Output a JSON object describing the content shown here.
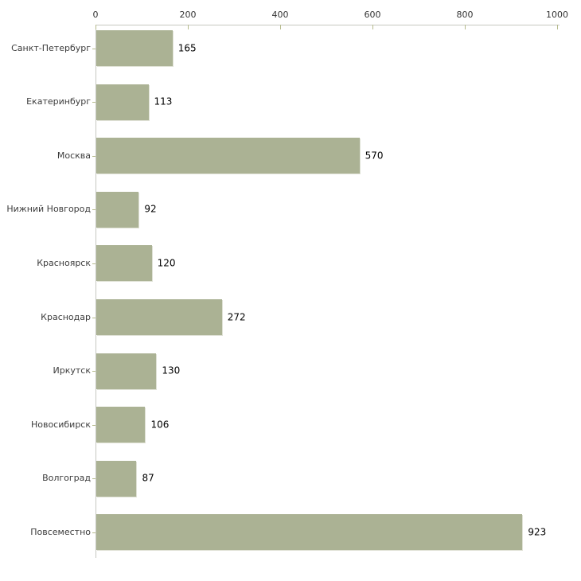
{
  "chart_data": {
    "type": "bar",
    "orientation": "horizontal",
    "title": "",
    "categories": [
      "Санкт-Петербург",
      "Екатеринбург",
      "Москва",
      "Нижний Новгород",
      "Красноярск",
      "Краснодар",
      "Иркутск",
      "Новосибирск",
      "Волгоград",
      "Повсеместно"
    ],
    "values": [
      165,
      113,
      570,
      92,
      120,
      272,
      130,
      106,
      87,
      923
    ],
    "value_labels": [
      "165",
      "113",
      "570",
      "92",
      "120",
      "272",
      "130",
      "106",
      "87",
      "923"
    ],
    "x_ticks": [
      0,
      200,
      400,
      600,
      800,
      1000
    ],
    "x_tick_labels": [
      "0",
      "200",
      "400",
      "600",
      "800",
      "1000"
    ],
    "xlim": [
      0,
      1000
    ],
    "xlabel": "",
    "ylabel": "",
    "grid": false,
    "legend_position": "none",
    "x_axis_position": "top",
    "colors": {
      "bar_fill": "#abb294",
      "bar_edge": "#dfe1d5",
      "axis_line": "#c6c8c1",
      "tick_mark": "#b5ba8c",
      "tick_label": "#333333",
      "category_label": "#3c3c3c",
      "value_label": "#000000",
      "background": "#ffffff"
    }
  }
}
